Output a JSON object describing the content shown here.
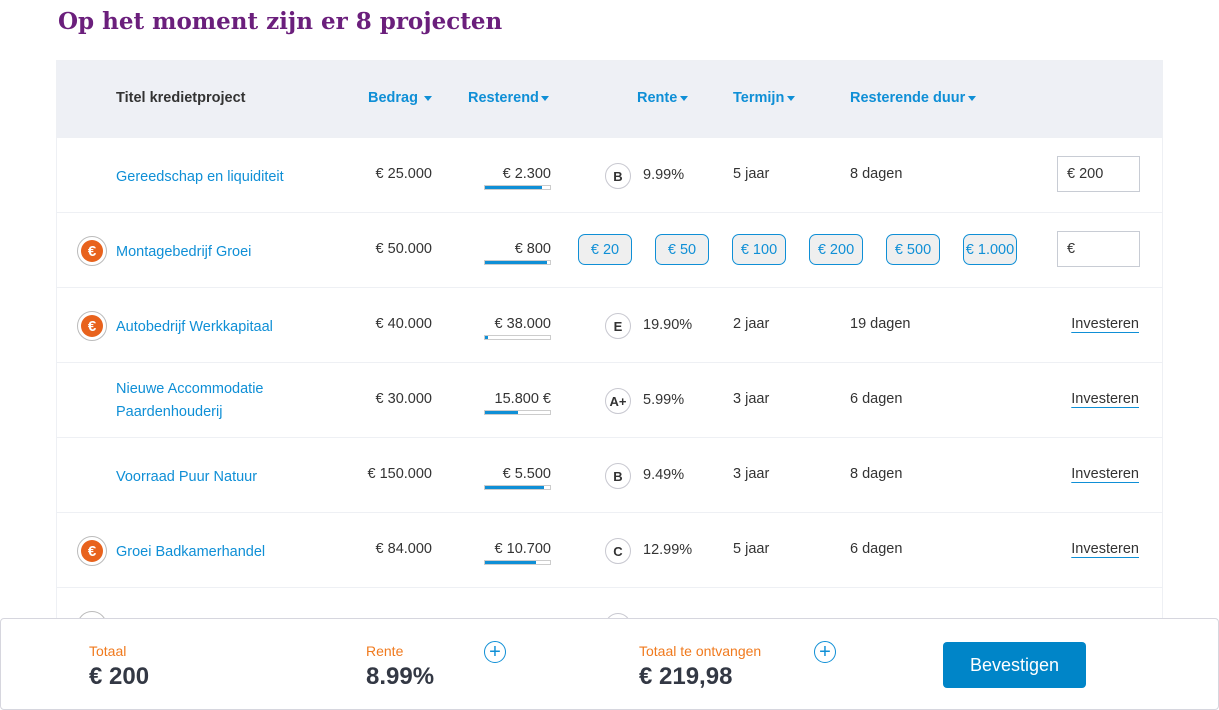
{
  "page_title": "Op het moment zijn er 8 projecten",
  "columns": {
    "title": "Titel kredietproject",
    "bedrag": "Bedrag",
    "resterend": "Resterend",
    "rente": "Rente",
    "termijn": "Termijn",
    "duur": "Resterende duur"
  },
  "rows": [
    {
      "euro": false,
      "title": "Gereedschap en liquiditeit",
      "bedrag": "€ 25.000",
      "resterend": "€ 2.300",
      "progress": 0.88,
      "rating": "B",
      "rente": "9.99%",
      "termijn": "5 jaar",
      "duur": "8 dagen",
      "action": "input",
      "input_value": "€ 200"
    },
    {
      "euro": true,
      "title": "Montagebedrijf Groei",
      "bedrag": "€ 50.000",
      "resterend": "€ 800",
      "progress": 0.95,
      "chips": [
        "€ 20",
        "€ 50",
        "€ 100",
        "€ 200",
        "€ 500",
        "€ 1.000"
      ],
      "action": "input",
      "input_value": "€"
    },
    {
      "euro": true,
      "title": "Autobedrijf Werkkapitaal",
      "bedrag": "€ 40.000",
      "resterend": "€ 38.000",
      "progress": 0.05,
      "rating": "E",
      "rente": "19.90%",
      "termijn": "2 jaar",
      "duur": "19 dagen",
      "action": "Investeren"
    },
    {
      "euro": false,
      "title": "Nieuwe Accommodatie Paardenhouderij",
      "bedrag": "€ 30.000",
      "resterend": "15.800 €",
      "progress": 0.5,
      "rating": "A+",
      "rente": "5.99%",
      "termijn": "3 jaar",
      "duur": "6 dagen",
      "action": "Investeren"
    },
    {
      "euro": false,
      "title": "Voorraad Puur Natuur",
      "bedrag": "€ 150.000",
      "resterend": "€ 5.500",
      "progress": 0.9,
      "rating": "B",
      "rente": "9.49%",
      "termijn": "3 jaar",
      "duur": "8 dagen",
      "action": "Investeren"
    },
    {
      "euro": true,
      "title": "Groei Badkamerhandel",
      "bedrag": "€ 84.000",
      "resterend": "€ 10.700",
      "progress": 0.78,
      "rating": "C",
      "rente": "12.99%",
      "termijn": "5 jaar",
      "duur": "6 dagen",
      "action": "Investeren"
    }
  ],
  "footer": {
    "totaal_label": "Totaal",
    "totaal": "€ 200",
    "rente_label": "Rente",
    "rente": "8.99%",
    "ontvangen_label": "Totaal te ontvangen",
    "ontvangen": "€ 219,98",
    "confirm": "Bevestigen"
  },
  "colors": {
    "accent": "#0f8fd6",
    "title": "#6b1f7c",
    "label": "#f07a1e",
    "button": "#0085c8"
  }
}
